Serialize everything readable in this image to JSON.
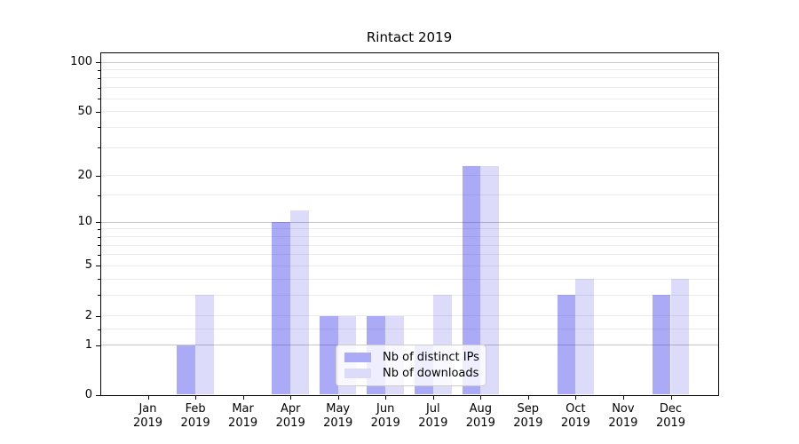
{
  "chart_data": {
    "type": "bar",
    "title": "Rintact 2019",
    "scale": "log1p",
    "months": [
      "Jan",
      "Feb",
      "Mar",
      "Apr",
      "May",
      "Jun",
      "Jul",
      "Aug",
      "Sep",
      "Oct",
      "Nov",
      "Dec"
    ],
    "year": "2019",
    "categories": [
      "Jan 2019",
      "Feb 2019",
      "Mar 2019",
      "Apr 2019",
      "May 2019",
      "Jun 2019",
      "Jul 2019",
      "Aug 2019",
      "Sep 2019",
      "Oct 2019",
      "Nov 2019",
      "Dec 2019"
    ],
    "series": [
      {
        "name": "Nb of distinct IPs",
        "color": "#aaaaf7",
        "fill": "rgba(43,43,235,0.40)",
        "values": [
          0,
          1,
          0,
          10,
          2,
          2,
          1,
          23,
          0,
          3,
          0,
          3
        ]
      },
      {
        "name": "Nb of downloads",
        "color": "#dcdcfa",
        "fill": "rgba(20,20,220,0.15)",
        "values": [
          0,
          3,
          0,
          12,
          2,
          2,
          3,
          23,
          0,
          4,
          0,
          4
        ]
      }
    ],
    "yticks": [
      0,
      1,
      2,
      5,
      10,
      20,
      50,
      100
    ],
    "major_gridlines": [
      1,
      10,
      100
    ],
    "minor_gridlines": [
      1.5,
      2,
      3,
      4,
      5,
      6,
      7,
      8,
      9,
      15,
      20,
      30,
      40,
      50,
      60,
      70,
      80,
      90
    ],
    "ylim": [
      0,
      115
    ],
    "grid": true,
    "legend_position": "lower center"
  },
  "colors": {
    "major_grid": "#c6c6c6",
    "minor_grid": "#ececec",
    "spine": "#000000",
    "legend_border": "#cccccc",
    "background": "#ffffff"
  }
}
